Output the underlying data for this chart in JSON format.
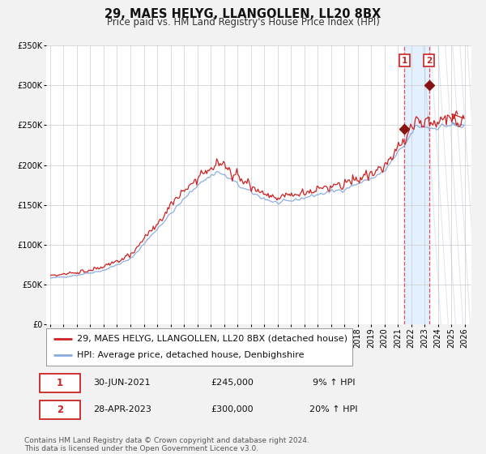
{
  "title": "29, MAES HELYG, LLANGOLLEN, LL20 8BX",
  "subtitle": "Price paid vs. HM Land Registry's House Price Index (HPI)",
  "legend_line1": "29, MAES HELYG, LLANGOLLEN, LL20 8BX (detached house)",
  "legend_line2": "HPI: Average price, detached house, Denbighshire",
  "footnote1": "Contains HM Land Registry data © Crown copyright and database right 2024.",
  "footnote2": "This data is licensed under the Open Government Licence v3.0.",
  "transaction1_date": "30-JUN-2021",
  "transaction1_price": 245000,
  "transaction1_label": "9% ↑ HPI",
  "transaction2_date": "28-APR-2023",
  "transaction2_price": 300000,
  "transaction2_label": "20% ↑ HPI",
  "sale1_x": 2021.5,
  "sale2_x": 2023.33,
  "ylim_min": 0,
  "ylim_max": 350000,
  "xlim_min": 1994.7,
  "xlim_max": 2026.5,
  "hpi_color": "#88aadd",
  "price_color": "#cc2222",
  "marker_color": "#881111",
  "shade_color": "#ddeeff",
  "dashed_color": "#ee3333",
  "background_color": "#f2f2f2",
  "plot_bg_color": "#ffffff",
  "title_fontsize": 10.5,
  "subtitle_fontsize": 8.5,
  "tick_fontsize": 7,
  "legend_fontsize": 8,
  "footnote_fontsize": 6.5
}
